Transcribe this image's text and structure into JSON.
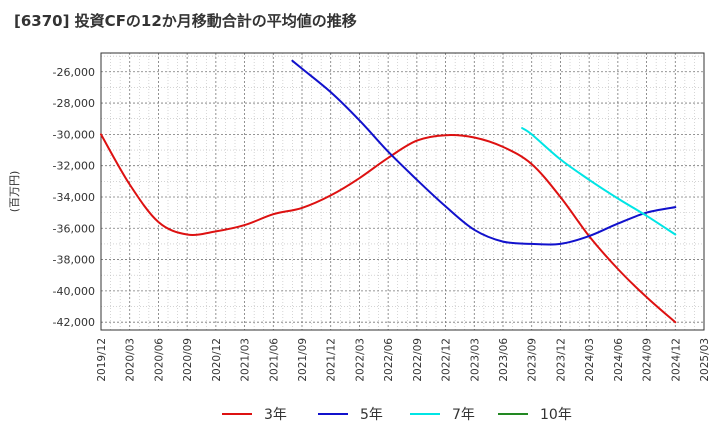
{
  "chart_data": {
    "type": "line",
    "title": "[6370]  投資CFの12か月移動合計の平均値の推移",
    "ylabel": "(百万円)",
    "xlabel": "",
    "ylim": [
      -42500,
      -24800
    ],
    "yticks": [
      -26000,
      -28000,
      -30000,
      -32000,
      -34000,
      -36000,
      -38000,
      -40000,
      -42000
    ],
    "ytick_labels": [
      "-26,000",
      "-28,000",
      "-30,000",
      "-32,000",
      "-34,000",
      "-36,000",
      "-38,000",
      "-40,000",
      "-42,000"
    ],
    "xticks": [
      "2019/12",
      "2020/03",
      "2020/06",
      "2020/09",
      "2020/12",
      "2021/03",
      "2021/06",
      "2021/09",
      "2021/12",
      "2022/03",
      "2022/06",
      "2022/09",
      "2022/12",
      "2023/03",
      "2023/06",
      "2023/09",
      "2023/12",
      "2024/03",
      "2024/06",
      "2024/09",
      "2024/12",
      "2025/03"
    ],
    "grid": true,
    "legend_position": "bottom",
    "series": [
      {
        "name": "3年",
        "color": "#dd1111",
        "points": [
          [
            "2019/12",
            -30000
          ],
          [
            "2020/03",
            -33200
          ],
          [
            "2020/06",
            -35600
          ],
          [
            "2020/09",
            -36400
          ],
          [
            "2020/12",
            -36200
          ],
          [
            "2021/03",
            -35800
          ],
          [
            "2021/06",
            -35100
          ],
          [
            "2021/09",
            -34700
          ],
          [
            "2021/12",
            -33900
          ],
          [
            "2022/03",
            -32800
          ],
          [
            "2022/06",
            -31500
          ],
          [
            "2022/09",
            -30400
          ],
          [
            "2022/12",
            -30050
          ],
          [
            "2023/03",
            -30200
          ],
          [
            "2023/06",
            -30800
          ],
          [
            "2023/09",
            -31900
          ],
          [
            "2023/12",
            -34000
          ],
          [
            "2024/03",
            -36500
          ],
          [
            "2024/06",
            -38600
          ],
          [
            "2024/09",
            -40400
          ],
          [
            "2024/12",
            -42000
          ]
        ]
      },
      {
        "name": "5年",
        "color": "#1111cc",
        "points": [
          [
            "2021/08",
            -25300
          ],
          [
            "2021/09",
            -25800
          ],
          [
            "2021/12",
            -27300
          ],
          [
            "2022/03",
            -29100
          ],
          [
            "2022/06",
            -31100
          ],
          [
            "2022/09",
            -32900
          ],
          [
            "2022/12",
            -34600
          ],
          [
            "2023/03",
            -36100
          ],
          [
            "2023/06",
            -36850
          ],
          [
            "2023/09",
            -37000
          ],
          [
            "2023/12",
            -37000
          ],
          [
            "2024/03",
            -36500
          ],
          [
            "2024/06",
            -35700
          ],
          [
            "2024/09",
            -35000
          ],
          [
            "2024/12",
            -34650
          ]
        ]
      },
      {
        "name": "7年",
        "color": "#00e5e5",
        "points": [
          [
            "2023/08",
            -29600
          ],
          [
            "2023/09",
            -30000
          ],
          [
            "2023/12",
            -31600
          ],
          [
            "2024/03",
            -32900
          ],
          [
            "2024/06",
            -34100
          ],
          [
            "2024/09",
            -35200
          ],
          [
            "2024/12",
            -36400
          ]
        ]
      },
      {
        "name": "10年",
        "color": "#228822",
        "points": []
      }
    ]
  }
}
